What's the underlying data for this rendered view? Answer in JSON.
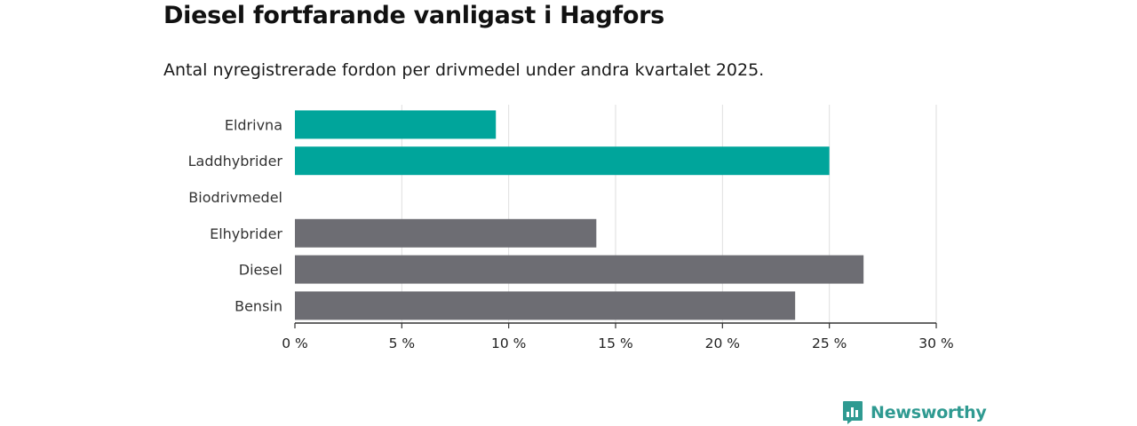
{
  "header": {
    "title": "Diesel fortfarande vanligast i Hagfors",
    "subtitle": "Antal nyregistrerade fordon per drivmedel under andra kvartalet 2025."
  },
  "chart_data": {
    "type": "bar",
    "orientation": "horizontal",
    "categories": [
      "Eldrivna",
      "Laddhybrider",
      "Biodrivmedel",
      "Elhybrider",
      "Diesel",
      "Bensin"
    ],
    "values": [
      9.4,
      25.0,
      0,
      14.1,
      26.6,
      23.4
    ],
    "bar_colors": [
      "#00a59b",
      "#00a59b",
      "#00a59b",
      "#6d6d73",
      "#6d6d73",
      "#6d6d73"
    ],
    "xlim": [
      0,
      30
    ],
    "xticks": [
      0,
      5,
      10,
      15,
      20,
      25,
      30
    ],
    "xtick_labels": [
      "0 %",
      "5 %",
      "10 %",
      "15 %",
      "20 %",
      "25 %",
      "30 %"
    ],
    "grid": true
  },
  "branding": {
    "name": "Newsworthy",
    "icon": "newsworthy-logo-icon",
    "color": "#2f9a91"
  }
}
